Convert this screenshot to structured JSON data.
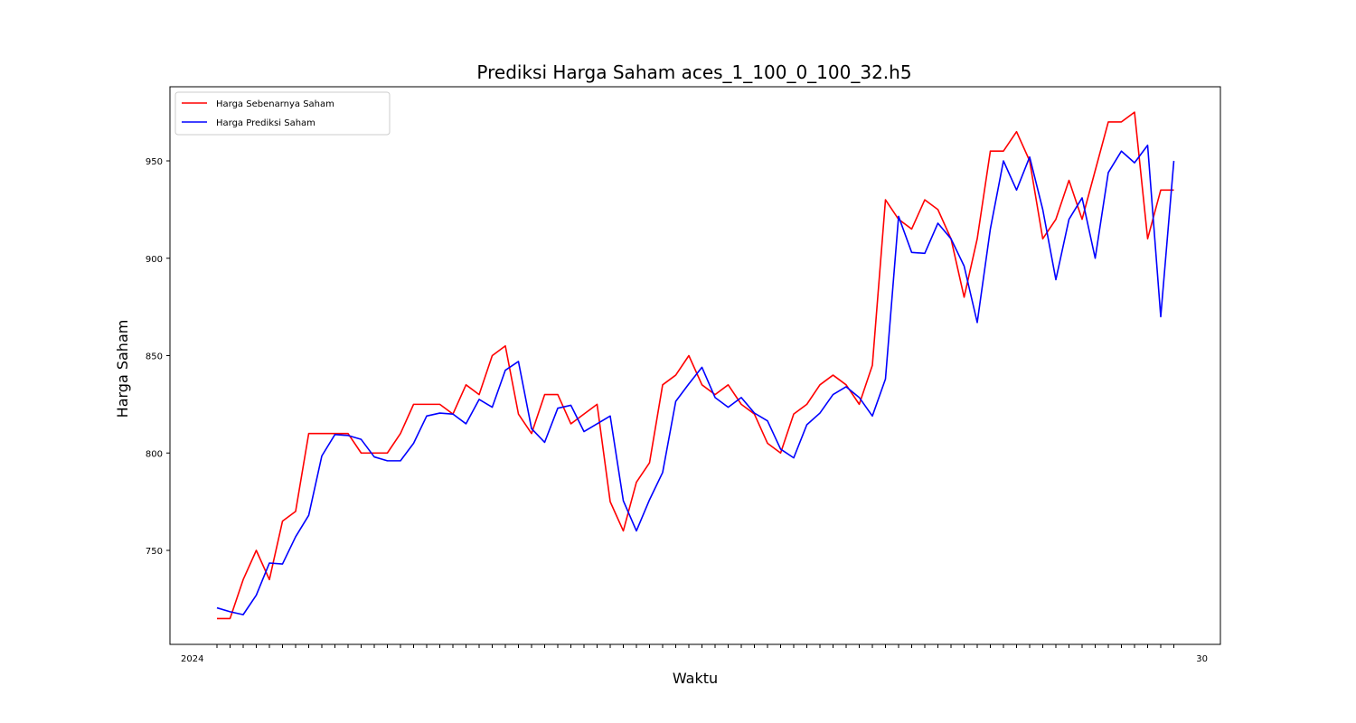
{
  "chart_data": {
    "type": "line",
    "title": "Prediksi Harga Saham aces_1_100_0_100_32.h5",
    "xlabel": "Waktu",
    "ylabel": "Harga Saham",
    "y_ticks": [
      750,
      800,
      850,
      900,
      950
    ],
    "ylim": [
      703,
      988
    ],
    "x_tick_text_left": "2024",
    "x_tick_text_right": "30",
    "legend_position": "upper-left",
    "grid": false,
    "x": [
      0,
      1,
      2,
      3,
      4,
      5,
      6,
      7,
      8,
      9,
      10,
      11,
      12,
      13,
      14,
      15,
      16,
      17,
      18,
      19,
      20,
      21,
      22,
      23,
      24,
      25,
      26,
      27,
      28,
      29,
      30,
      31,
      32,
      33,
      34,
      35,
      36,
      37,
      38,
      39,
      40,
      41,
      42,
      43,
      44,
      45,
      46,
      47,
      48,
      49,
      50,
      51,
      52,
      53,
      54,
      55,
      56,
      57,
      58,
      59,
      60,
      61,
      62,
      63,
      64,
      65,
      66,
      67,
      68,
      69,
      70,
      71,
      72,
      73
    ],
    "series": [
      {
        "name": "Harga Sebenarnya Saham",
        "color": "#ff0000",
        "values": [
          715,
          715,
          735,
          750,
          735,
          765,
          770,
          810,
          810,
          810,
          810,
          800,
          800,
          800,
          810,
          825,
          825,
          825,
          820,
          835,
          830,
          850,
          855,
          820,
          810,
          830,
          830,
          815,
          820,
          825,
          775,
          760,
          785,
          795,
          835,
          840,
          850,
          835,
          830,
          835,
          825,
          820,
          805,
          800,
          820,
          825,
          835,
          840,
          835,
          825,
          845,
          930,
          920,
          915,
          930,
          925,
          910,
          880,
          910,
          955,
          955,
          965,
          950,
          910,
          920,
          940,
          920,
          945,
          970,
          970,
          975,
          910,
          935,
          935
        ]
      },
      {
        "name": "Harga Prediksi Saham",
        "color": "#0000ff",
        "values": [
          720.5,
          718.5,
          717,
          727,
          743.5,
          743,
          757,
          768,
          798.5,
          809.5,
          809,
          807,
          798,
          796,
          796,
          805,
          819,
          820.5,
          820,
          815,
          827.5,
          823.5,
          842.5,
          847,
          812.5,
          805.5,
          823,
          824.5,
          811,
          815,
          819,
          775.5,
          760,
          776,
          790,
          826.5,
          835.5,
          844,
          828.5,
          823.5,
          828.5,
          820.5,
          816.5,
          802,
          797.5,
          814.5,
          820.5,
          830,
          834,
          828.5,
          819,
          838,
          921.5,
          903,
          902.5,
          918,
          910,
          896,
          867,
          915,
          950,
          935,
          952,
          925,
          889,
          920,
          931,
          900,
          944,
          955,
          949,
          958,
          870,
          950
        ]
      }
    ]
  }
}
